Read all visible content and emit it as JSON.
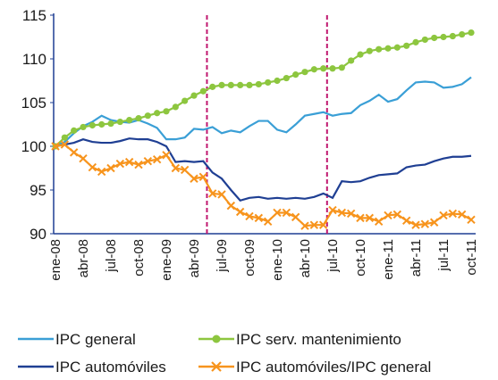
{
  "chart_data": {
    "type": "line",
    "categories": [
      "ene-08",
      null,
      null,
      "abr-08",
      null,
      null,
      "jul-08",
      null,
      null,
      "oct-08",
      null,
      null,
      "ene-09",
      null,
      null,
      "abr-09",
      null,
      null,
      "jul-09",
      null,
      null,
      "oct-09",
      null,
      null,
      "ene-10",
      null,
      null,
      "abr-10",
      null,
      null,
      "jul-10",
      null,
      null,
      "oct-10",
      null,
      null,
      "ene-11",
      null,
      null,
      "abr-11",
      null,
      null,
      "jul-11",
      null,
      null,
      "oct-11"
    ],
    "series": [
      {
        "name": "IPC general",
        "color": "#3a9fd6",
        "marker": "none",
        "values": [
          100,
          100.5,
          101.5,
          102.3,
          102.8,
          103.5,
          103,
          102.8,
          102.7,
          103,
          102.6,
          102.1,
          100.8,
          100.8,
          101,
          102,
          101.9,
          102.2,
          101.5,
          101.8,
          101.6,
          102.3,
          102.9,
          102.9,
          101.9,
          101.6,
          102.5,
          103.5,
          103.7,
          103.9,
          103.5,
          103.7,
          103.8,
          104.7,
          105.2,
          105.9,
          105.1,
          105.4,
          106.4,
          107.3,
          107.4,
          107.3,
          106.7,
          106.8,
          107.1,
          107.9
        ]
      },
      {
        "name": "IPC serv. mantenimiento",
        "color": "#8dc63f",
        "marker": "circle",
        "values": [
          100,
          101,
          101.8,
          102.2,
          102.4,
          102.5,
          102.6,
          102.8,
          103,
          103.2,
          103.5,
          103.8,
          104,
          104.5,
          105.2,
          105.8,
          106.3,
          106.8,
          107,
          107,
          107,
          107,
          107.1,
          107.3,
          107.5,
          107.8,
          108.2,
          108.5,
          108.8,
          108.9,
          108.9,
          109,
          109.8,
          110.5,
          110.9,
          111.1,
          111.2,
          111.3,
          111.5,
          111.9,
          112.2,
          112.4,
          112.5,
          112.6,
          112.8,
          113
        ]
      },
      {
        "name": "IPC automóviles",
        "color": "#1f3f93",
        "marker": "none",
        "values": [
          100,
          100.2,
          100.4,
          100.8,
          100.5,
          100.4,
          100.4,
          100.6,
          100.9,
          100.8,
          100.8,
          100.5,
          100,
          98.2,
          98.3,
          98.2,
          98.3,
          97,
          96.3,
          95,
          93.8,
          94.1,
          94.2,
          94,
          94.1,
          94,
          94.1,
          94,
          94.2,
          94.6,
          94.1,
          96,
          95.9,
          96,
          96.4,
          96.7,
          96.8,
          96.9,
          97.6,
          97.8,
          97.9,
          98.3,
          98.6,
          98.8,
          98.8,
          98.9
        ]
      },
      {
        "name": "IPC automóviles/IPC general",
        "color": "#f7941d",
        "marker": "cross",
        "values": [
          100,
          100.2,
          99.3,
          98.6,
          97.6,
          97.1,
          97.5,
          98,
          98.2,
          97.9,
          98.3,
          98.5,
          99,
          97.5,
          97.3,
          96.3,
          96.5,
          94.6,
          94.5,
          93.2,
          92.5,
          92,
          91.8,
          91.4,
          92.4,
          92.4,
          91.9,
          90.9,
          91,
          91,
          92.7,
          92.4,
          92.3,
          91.8,
          91.8,
          91.4,
          92.1,
          92.2,
          91.5,
          91,
          91.1,
          91.3,
          92.1,
          92.3,
          92.2,
          91.6
        ]
      }
    ],
    "reference_lines_x": [
      16.4,
      29.4
    ],
    "reference_color": "#c0186f",
    "ylim": [
      90,
      115
    ],
    "yticks": [
      90,
      95,
      100,
      105,
      110,
      115
    ],
    "grid": false
  }
}
